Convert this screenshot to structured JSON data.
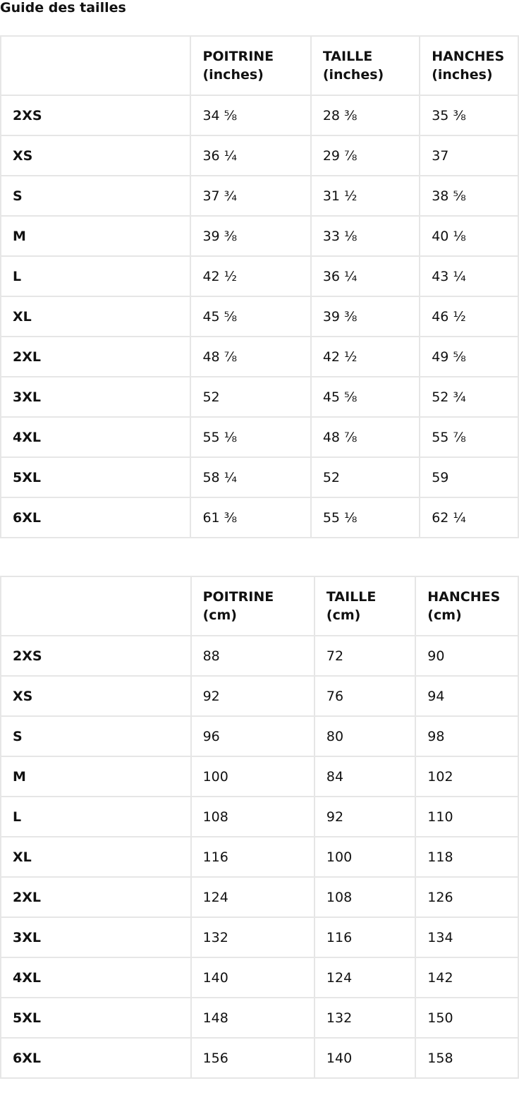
{
  "title": "Guide des tailles",
  "tables": [
    {
      "headers": [
        "",
        "POITRINE\n(inches)",
        "TAILLE\n(inches)",
        "HANCHES\n(inches)"
      ],
      "rows": [
        [
          "2XS",
          "34 ⅝",
          "28 ⅜",
          "35 ⅜"
        ],
        [
          "XS",
          "36 ¼",
          "29 ⅞",
          "37"
        ],
        [
          "S",
          "37 ¾",
          "31 ½",
          "38 ⅝"
        ],
        [
          "M",
          "39 ⅜",
          "33 ⅛",
          "40 ⅛"
        ],
        [
          "L",
          "42 ½",
          "36 ¼",
          "43 ¼"
        ],
        [
          "XL",
          "45 ⅝",
          "39 ⅜",
          "46 ½"
        ],
        [
          "2XL",
          "48 ⅞",
          "42 ½",
          "49 ⅝"
        ],
        [
          "3XL",
          "52",
          "45 ⅝",
          "52 ¾"
        ],
        [
          "4XL",
          "55 ⅛",
          "48 ⅞",
          "55 ⅞"
        ],
        [
          "5XL",
          "58 ¼",
          "52",
          "59"
        ],
        [
          "6XL",
          "61 ⅜",
          "55 ⅛",
          "62 ¼"
        ]
      ]
    },
    {
      "headers": [
        "",
        "POITRINE\n(cm)",
        "TAILLE\n(cm)",
        "HANCHES\n(cm)"
      ],
      "rows": [
        [
          "2XS",
          "88",
          "72",
          "90"
        ],
        [
          "XS",
          "92",
          "76",
          "94"
        ],
        [
          "S",
          "96",
          "80",
          "98"
        ],
        [
          "M",
          "100",
          "84",
          "102"
        ],
        [
          "L",
          "108",
          "92",
          "110"
        ],
        [
          "XL",
          "116",
          "100",
          "118"
        ],
        [
          "2XL",
          "124",
          "108",
          "126"
        ],
        [
          "3XL",
          "132",
          "116",
          "134"
        ],
        [
          "4XL",
          "140",
          "124",
          "142"
        ],
        [
          "5XL",
          "148",
          "132",
          "150"
        ],
        [
          "6XL",
          "156",
          "140",
          "158"
        ]
      ]
    }
  ]
}
